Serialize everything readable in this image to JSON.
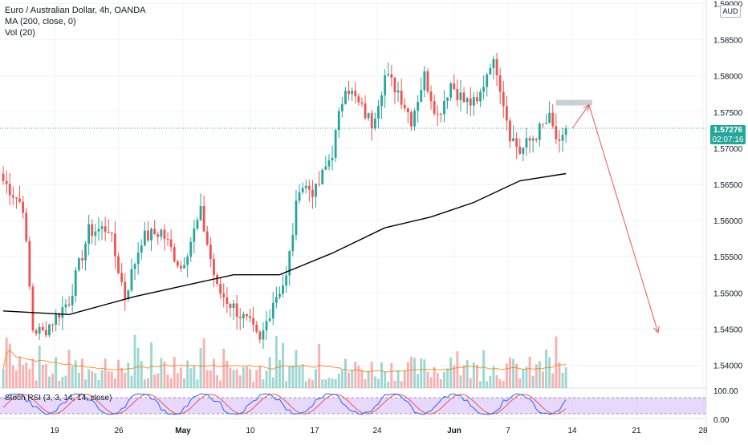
{
  "legend": {
    "symbol": "Euro / Australian Dollar, 4h, OANDA",
    "ma": "MA (200, close, 0)",
    "vol": "Vol (20)",
    "stoch": "Stoch RSI (3, 3, 14, 14, close)"
  },
  "currency": "AUD",
  "last_price": {
    "value": "1.57276",
    "countdown": "02:07:16"
  },
  "colors": {
    "up": "#26a69a",
    "down": "#ef5350",
    "ma": "#000000",
    "vol_ma": "#f57c00",
    "stoch_k": "#2962ff",
    "stoch_d": "#ef5350",
    "stoch_band": "#d6b8f7"
  },
  "chart_data": [
    {
      "type": "candlestick",
      "title": "Euro / Australian Dollar, 4h, OANDA",
      "x_ticks": [
        "19",
        "26",
        "May",
        "10",
        "17",
        "24",
        "Jun",
        "7",
        "14",
        "21",
        "28"
      ],
      "y_ticks": [
        "1.54000",
        "1.54500",
        "1.55000",
        "1.55500",
        "1.56000",
        "1.56500",
        "1.57000",
        "1.57500",
        "1.58000",
        "1.58500",
        "1.59000"
      ],
      "ylim": [
        1.5375,
        1.5905
      ],
      "grid": true,
      "close_path": [
        [
          0,
          1.5655
        ],
        [
          6,
          1.562
        ],
        [
          9,
          1.545
        ],
        [
          12,
          1.5445
        ],
        [
          20,
          1.549
        ],
        [
          26,
          1.5585
        ],
        [
          32,
          1.559
        ],
        [
          37,
          1.5495
        ],
        [
          42,
          1.5575
        ],
        [
          48,
          1.5585
        ],
        [
          54,
          1.5535
        ],
        [
          60,
          1.561
        ],
        [
          65,
          1.5505
        ],
        [
          70,
          1.548
        ],
        [
          75,
          1.5455
        ],
        [
          78,
          1.543
        ],
        [
          82,
          1.549
        ],
        [
          86,
          1.552
        ],
        [
          90,
          1.565
        ],
        [
          95,
          1.564
        ],
        [
          100,
          1.5695
        ],
        [
          104,
          1.579
        ],
        [
          108,
          1.576
        ],
        [
          112,
          1.5735
        ],
        [
          116,
          1.58
        ],
        [
          120,
          1.578
        ],
        [
          124,
          1.574
        ],
        [
          128,
          1.58
        ],
        [
          132,
          1.5745
        ],
        [
          136,
          1.579
        ],
        [
          140,
          1.5765
        ],
        [
          144,
          1.576
        ],
        [
          148,
          1.582
        ],
        [
          150,
          1.581
        ],
        [
          154,
          1.572
        ],
        [
          157,
          1.5695
        ],
        [
          162,
          1.572
        ],
        [
          166,
          1.574
        ],
        [
          169,
          1.57
        ],
        [
          171,
          1.572
        ]
      ],
      "last_price": 1.57276,
      "series": [
        {
          "name": "MA (200, close, 0)",
          "type": "line",
          "values": [
            [
              0,
              1.5475
            ],
            [
              20,
              1.547
            ],
            [
              40,
              1.5495
            ],
            [
              60,
              1.5515
            ],
            [
              70,
              1.5525
            ],
            [
              84,
              1.5525
            ],
            [
              100,
              1.5555
            ],
            [
              116,
              1.559
            ],
            [
              130,
              1.5605
            ],
            [
              143,
              1.5625
            ],
            [
              157,
              1.5655
            ],
            [
              171,
              1.5665
            ]
          ]
        }
      ],
      "annotations": [
        {
          "type": "resistance_zone",
          "price": 1.5763,
          "x_start": 168,
          "x_end": 179
        },
        {
          "type": "arrow",
          "points": [
            [
              173,
              1.5728
            ],
            [
              178,
              1.576
            ],
            [
              199,
              1.5445
            ]
          ]
        }
      ]
    },
    {
      "type": "bar",
      "title": "Vol (20)",
      "note": "volume histogram with 20-period moving average"
    },
    {
      "type": "line",
      "title": "Stoch RSI (3, 3, 14, 14, close)",
      "y_ticks": [
        "100.00",
        "0.00"
      ],
      "band": [
        20,
        80
      ],
      "ylim": [
        0,
        100
      ]
    }
  ]
}
